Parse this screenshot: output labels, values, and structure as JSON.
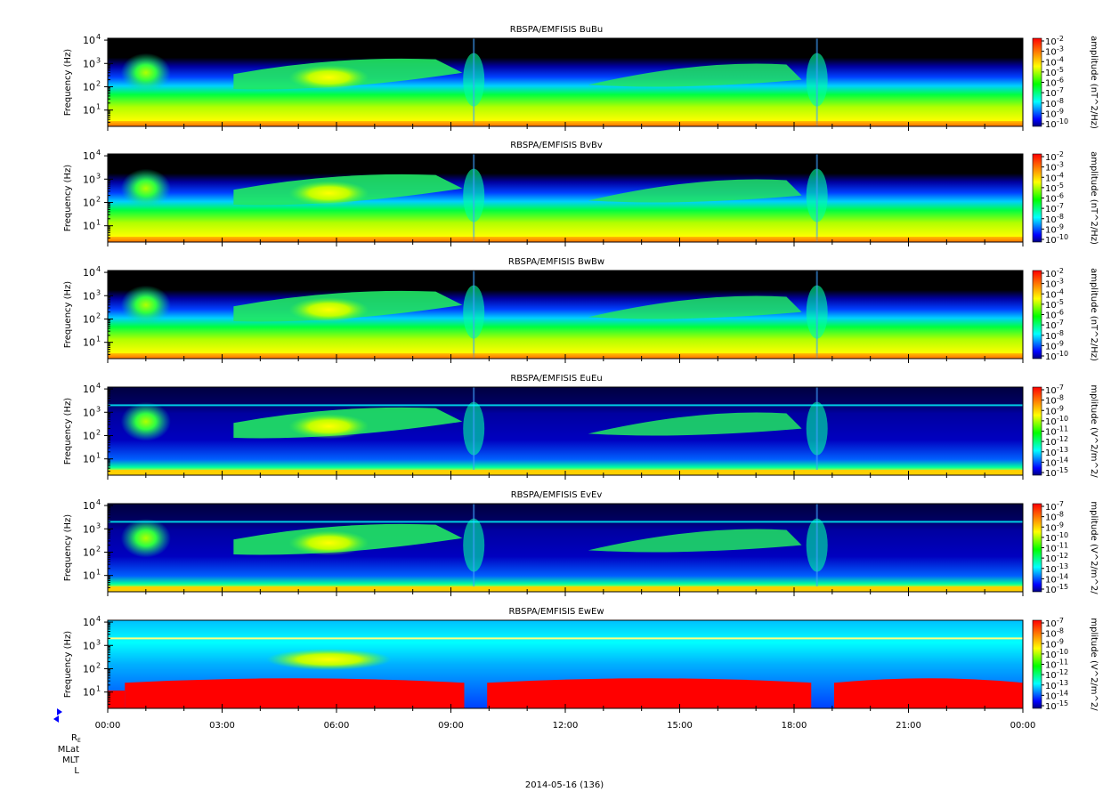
{
  "chart_data": [
    {
      "type": "heatmap",
      "title": "RBSPA/EMFISIS  BuBu",
      "ylabel": "Frequency (Hz)",
      "yscale": "log",
      "ylim": [
        2,
        12000
      ],
      "yticks": [
        {
          "value": 10,
          "label": "10",
          "exp": "1"
        },
        {
          "value": 100,
          "label": "10",
          "exp": "2"
        },
        {
          "value": 1000,
          "label": "10",
          "exp": "3"
        },
        {
          "value": 10000,
          "label": "10",
          "exp": "4"
        }
      ],
      "colorbar": {
        "label": "amplitude (nT^2/Hz)",
        "exps": [
          "-2",
          "-3",
          "-4",
          "-5",
          "-6",
          "-7",
          "-8",
          "-9",
          "-10"
        ],
        "scale": "log"
      },
      "field": "B"
    },
    {
      "type": "heatmap",
      "title": "RBSPA/EMFISIS  BvBv",
      "ylabel": "Frequency (Hz)",
      "yscale": "log",
      "ylim": [
        2,
        12000
      ],
      "yticks": [
        {
          "value": 10,
          "label": "10",
          "exp": "1"
        },
        {
          "value": 100,
          "label": "10",
          "exp": "2"
        },
        {
          "value": 1000,
          "label": "10",
          "exp": "3"
        },
        {
          "value": 10000,
          "label": "10",
          "exp": "4"
        }
      ],
      "colorbar": {
        "label": "amplitude (nT^2/Hz)",
        "exps": [
          "-2",
          "-3",
          "-4",
          "-5",
          "-6",
          "-7",
          "-8",
          "-9",
          "-10"
        ],
        "scale": "log"
      },
      "field": "B"
    },
    {
      "type": "heatmap",
      "title": "RBSPA/EMFISIS  BwBw",
      "ylabel": "Frequency (Hz)",
      "yscale": "log",
      "ylim": [
        2,
        12000
      ],
      "yticks": [
        {
          "value": 10,
          "label": "10",
          "exp": "1"
        },
        {
          "value": 100,
          "label": "10",
          "exp": "2"
        },
        {
          "value": 1000,
          "label": "10",
          "exp": "3"
        },
        {
          "value": 10000,
          "label": "10",
          "exp": "4"
        }
      ],
      "colorbar": {
        "label": "amplitude (nT^2/Hz)",
        "exps": [
          "-2",
          "-3",
          "-4",
          "-5",
          "-6",
          "-7",
          "-8",
          "-9",
          "-10"
        ],
        "scale": "log"
      },
      "field": "B"
    },
    {
      "type": "heatmap",
      "title": "RBSPA/EMFISIS  EuEu",
      "ylabel": "Frequency (Hz)",
      "yscale": "log",
      "ylim": [
        2,
        12000
      ],
      "yticks": [
        {
          "value": 10,
          "label": "10",
          "exp": "1"
        },
        {
          "value": 100,
          "label": "10",
          "exp": "2"
        },
        {
          "value": 1000,
          "label": "10",
          "exp": "3"
        },
        {
          "value": 10000,
          "label": "10",
          "exp": "4"
        }
      ],
      "colorbar": {
        "label": "mplitude (V^2/m^2/",
        "exps": [
          "-7",
          "-8",
          "-9",
          "-10",
          "-11",
          "-12",
          "-13",
          "-14",
          "-15"
        ],
        "scale": "log"
      },
      "field": "E"
    },
    {
      "type": "heatmap",
      "title": "RBSPA/EMFISIS  EvEv",
      "ylabel": "Frequency (Hz)",
      "yscale": "log",
      "ylim": [
        2,
        12000
      ],
      "yticks": [
        {
          "value": 10,
          "label": "10",
          "exp": "1"
        },
        {
          "value": 100,
          "label": "10",
          "exp": "2"
        },
        {
          "value": 1000,
          "label": "10",
          "exp": "3"
        },
        {
          "value": 10000,
          "label": "10",
          "exp": "4"
        }
      ],
      "colorbar": {
        "label": "mplitude (V^2/m^2/",
        "exps": [
          "-7",
          "-8",
          "-9",
          "-10",
          "-11",
          "-12",
          "-13",
          "-14",
          "-15"
        ],
        "scale": "log"
      },
      "field": "E"
    },
    {
      "type": "heatmap",
      "title": "RBSPA/EMFISIS  EwEw",
      "ylabel": "Frequency (Hz)",
      "yscale": "log",
      "ylim": [
        2,
        12000
      ],
      "yticks": [
        {
          "value": 10,
          "label": "10",
          "exp": "1"
        },
        {
          "value": 100,
          "label": "10",
          "exp": "2"
        },
        {
          "value": 1000,
          "label": "10",
          "exp": "3"
        },
        {
          "value": 10000,
          "label": "10",
          "exp": "4"
        }
      ],
      "colorbar": {
        "label": "mplitude (V^2/m^2/",
        "exps": [
          "-7",
          "-8",
          "-9",
          "-10",
          "-11",
          "-12",
          "-13",
          "-14",
          "-15"
        ],
        "scale": "log"
      },
      "field": "Ew"
    }
  ],
  "xaxis": {
    "tick_labels": [
      "00:00",
      "03:00",
      "06:00",
      "09:00",
      "12:00",
      "15:00",
      "18:00",
      "21:00",
      "00:00"
    ],
    "xlim_hours": [
      0,
      24
    ]
  },
  "ephemeris_labels": {
    "re": "R",
    "re_sub": "E",
    "mlat": "MLat",
    "mlt": "MLT",
    "l": "L"
  },
  "date_label": "2014-05-16 (136)",
  "colors": {
    "red": "#ff0000",
    "orange": "#ff8000",
    "yellow": "#ffff00",
    "green": "#00ff00",
    "cyan": "#00ffff",
    "blue": "#0000ff",
    "navy": "#000080",
    "black": "#000000"
  },
  "icons": {
    "marker": "blue-triangle-marker-icon"
  }
}
